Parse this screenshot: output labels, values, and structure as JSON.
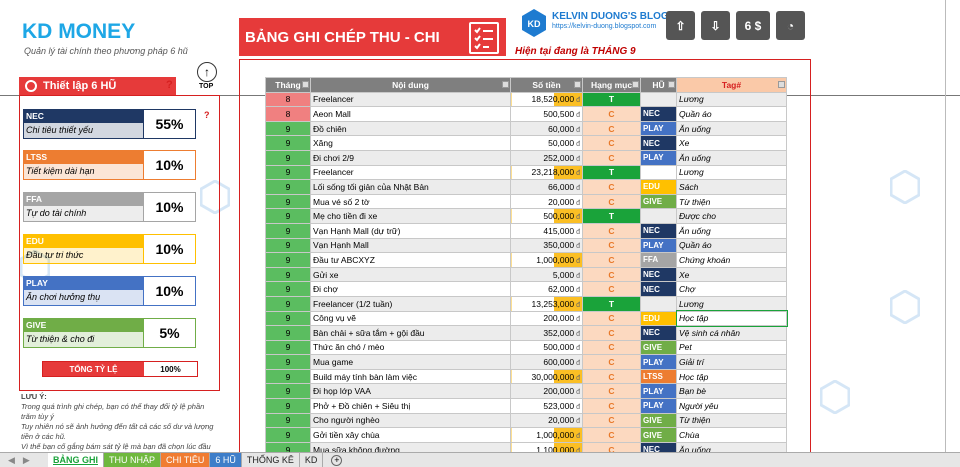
{
  "logo": {
    "kd": "KD",
    "money": "MONEY",
    "subtitle": "Quản lý tài chính theo phương pháp 6 hũ"
  },
  "left": {
    "header": "Thiết lập 6 HŨ",
    "top_label": "TOP",
    "total_label": "TỔNG TỶ LỆ",
    "total_value": "100%"
  },
  "jars": [
    {
      "code": "NEC",
      "desc": "Chi tiêu thiết yếu",
      "pct": "55%",
      "color": "#1f3864"
    },
    {
      "code": "LTSS",
      "desc": "Tiết kiệm dài hạn",
      "pct": "10%",
      "color": "#ed7d31"
    },
    {
      "code": "FFA",
      "desc": "Tự do tài chính",
      "pct": "10%",
      "color": "#a5a5a5"
    },
    {
      "code": "EDU",
      "desc": "Đầu tư tri thức",
      "pct": "10%",
      "color": "#ffc000"
    },
    {
      "code": "PLAY",
      "desc": "Ăn chơi hưởng thụ",
      "pct": "10%",
      "color": "#4472c4"
    },
    {
      "code": "GIVE",
      "desc": "Từ thiện & cho đi",
      "pct": "5%",
      "color": "#70ad47"
    }
  ],
  "note": {
    "title": "LƯU Ý:",
    "l1": "Trong quá trình ghi chép, bạn có thể thay đổi tỷ lệ phần trăm tùy ý",
    "l2": "Tuy nhiên nó sẽ ảnh hưởng đến tất cả các số dư và lượng tiền ở các hũ.",
    "l3": "Vì thế bạn cố gắng bám sát tỷ lệ mà bạn đã chọn lúc đầu"
  },
  "main": {
    "title": "BẢNG GHI CHÉP THU - CHI",
    "month_label": "Hiện tại đang là THÁNG 9"
  },
  "blog": {
    "name": "KELVIN DUONG'S BLOG",
    "url": "https://kelvin-duong.blogspot.com"
  },
  "header_buttons": [
    "6 $"
  ],
  "columns": [
    "Tháng",
    "Nội dung",
    "Số tiền",
    "Hạng mục",
    "HŨ",
    "Tag#"
  ],
  "currency": "đ",
  "rows": [
    {
      "m": "8",
      "c": "Freelancer",
      "a": "18,520,000",
      "k": "T",
      "h": "",
      "t": "Lương"
    },
    {
      "m": "8",
      "c": "Aeon Mall",
      "a": "500,500",
      "k": "C",
      "h": "NEC",
      "t": "Quần áo"
    },
    {
      "m": "9",
      "c": "Đồ chiên",
      "a": "60,000",
      "k": "C",
      "h": "PLAY",
      "t": "Ăn uống"
    },
    {
      "m": "9",
      "c": "Xăng",
      "a": "50,000",
      "k": "C",
      "h": "NEC",
      "t": "Xe"
    },
    {
      "m": "9",
      "c": "Đi chơi 2/9",
      "a": "252,000",
      "k": "C",
      "h": "PLAY",
      "t": "Ăn uống"
    },
    {
      "m": "9",
      "c": "Freelancer",
      "a": "23,218,000",
      "k": "T",
      "h": "",
      "t": "Lương"
    },
    {
      "m": "9",
      "c": "Lối sống tối giản của Nhật Bản",
      "a": "66,000",
      "k": "C",
      "h": "EDU",
      "t": "Sách"
    },
    {
      "m": "9",
      "c": "Mua vé số 2 tờ",
      "a": "20,000",
      "k": "C",
      "h": "GIVE",
      "t": "Từ thiện"
    },
    {
      "m": "9",
      "c": "Mẹ cho tiền đi xe",
      "a": "500,000",
      "k": "T",
      "h": "",
      "t": "Được cho"
    },
    {
      "m": "9",
      "c": "Vạn Hạnh Mall (dự trữ)",
      "a": "415,000",
      "k": "C",
      "h": "NEC",
      "t": "Ăn uống"
    },
    {
      "m": "9",
      "c": "Vạn Hạnh Mall",
      "a": "350,000",
      "k": "C",
      "h": "PLAY",
      "t": "Quần áo"
    },
    {
      "m": "9",
      "c": "Đầu tư ABCXYZ",
      "a": "1,000,000",
      "k": "C",
      "h": "FFA",
      "t": "Chứng khoán"
    },
    {
      "m": "9",
      "c": "Gửi xe",
      "a": "5,000",
      "k": "C",
      "h": "NEC",
      "t": "Xe"
    },
    {
      "m": "9",
      "c": "Đi chợ",
      "a": "62,000",
      "k": "C",
      "h": "NEC",
      "t": "Chợ"
    },
    {
      "m": "9",
      "c": "Freelancer (1/2 tuần)",
      "a": "13,253,000",
      "k": "T",
      "h": "",
      "t": "Lương"
    },
    {
      "m": "9",
      "c": "Công vụ vẽ",
      "a": "200,000",
      "k": "C",
      "h": "EDU",
      "t": "Học tập"
    },
    {
      "m": "9",
      "c": "Bàn chải + sữa tắm + gội đầu",
      "a": "352,000",
      "k": "C",
      "h": "NEC",
      "t": "Vệ sinh cá nhân"
    },
    {
      "m": "9",
      "c": "Thức ăn chó / mèo",
      "a": "500,000",
      "k": "C",
      "h": "GIVE",
      "t": "Pet"
    },
    {
      "m": "9",
      "c": "Mua game",
      "a": "600,000",
      "k": "C",
      "h": "PLAY",
      "t": "Giải trí"
    },
    {
      "m": "9",
      "c": "Build máy tính bàn làm việc",
      "a": "30,000,000",
      "k": "C",
      "h": "LTSS",
      "t": "Học tập"
    },
    {
      "m": "9",
      "c": "Đi họp lớp VAA",
      "a": "200,000",
      "k": "C",
      "h": "PLAY",
      "t": "Bạn bè"
    },
    {
      "m": "9",
      "c": "Phở + Đồ chiên + Siêu thị",
      "a": "523,000",
      "k": "C",
      "h": "PLAY",
      "t": "Người yêu"
    },
    {
      "m": "9",
      "c": "Cho người nghèo",
      "a": "20,000",
      "k": "C",
      "h": "GIVE",
      "t": "Từ thiện"
    },
    {
      "m": "9",
      "c": "Gởi tiền xây chùa",
      "a": "1,000,000",
      "k": "C",
      "h": "GIVE",
      "t": "Chùa"
    },
    {
      "m": "9",
      "c": "Mua sữa không đường",
      "a": "1,100,000",
      "k": "C",
      "h": "NEC",
      "t": "Ăn uống"
    }
  ],
  "tabs": [
    "BẢNG GHI",
    "THU NHẬP",
    "CHI TIÊU",
    "6 HŨ",
    "THỐNG KÊ",
    "KD"
  ]
}
